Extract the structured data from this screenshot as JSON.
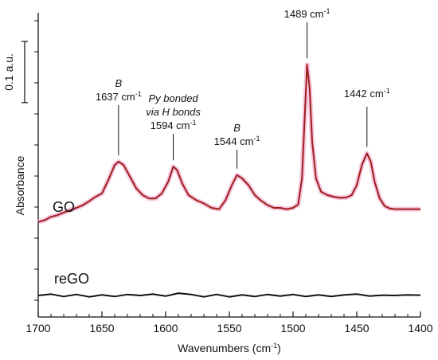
{
  "chart_data": {
    "type": "line",
    "xlabel": "Wavenumbers (cm",
    "xlabel_sup": "-1",
    "xlabel_end": ")",
    "ylabel": "Absorbance",
    "x_reversed": true,
    "xlim": [
      1700,
      1400
    ],
    "xticks": [
      1700,
      1650,
      1600,
      1550,
      1500,
      1450,
      1400
    ],
    "scale_bar": {
      "label": "0.1 a.u.",
      "value": 0.1
    },
    "series": [
      {
        "name": "GO",
        "color": "#a01e1e",
        "glow": "#f3b8d6",
        "points": [
          [
            1700,
            0.22
          ],
          [
            1695,
            0.225
          ],
          [
            1690,
            0.235
          ],
          [
            1685,
            0.24
          ],
          [
            1680,
            0.248
          ],
          [
            1675,
            0.255
          ],
          [
            1670,
            0.262
          ],
          [
            1665,
            0.27
          ],
          [
            1660,
            0.282
          ],
          [
            1655,
            0.295
          ],
          [
            1650,
            0.305
          ],
          [
            1645,
            0.345
          ],
          [
            1640,
            0.39
          ],
          [
            1637,
            0.4
          ],
          [
            1633,
            0.39
          ],
          [
            1628,
            0.355
          ],
          [
            1623,
            0.32
          ],
          [
            1618,
            0.3
          ],
          [
            1613,
            0.29
          ],
          [
            1608,
            0.29
          ],
          [
            1603,
            0.305
          ],
          [
            1598,
            0.34
          ],
          [
            1594,
            0.385
          ],
          [
            1591,
            0.375
          ],
          [
            1587,
            0.335
          ],
          [
            1582,
            0.3
          ],
          [
            1576,
            0.285
          ],
          [
            1570,
            0.275
          ],
          [
            1564,
            0.262
          ],
          [
            1558,
            0.258
          ],
          [
            1553,
            0.285
          ],
          [
            1548,
            0.33
          ],
          [
            1544,
            0.36
          ],
          [
            1540,
            0.35
          ],
          [
            1535,
            0.33
          ],
          [
            1530,
            0.3
          ],
          [
            1525,
            0.283
          ],
          [
            1520,
            0.27
          ],
          [
            1515,
            0.262
          ],
          [
            1510,
            0.262
          ],
          [
            1505,
            0.258
          ],
          [
            1500,
            0.262
          ],
          [
            1496,
            0.272
          ],
          [
            1493,
            0.35
          ],
          [
            1491,
            0.52
          ],
          [
            1489,
            0.69
          ],
          [
            1487,
            0.62
          ],
          [
            1485,
            0.46
          ],
          [
            1482,
            0.35
          ],
          [
            1478,
            0.31
          ],
          [
            1473,
            0.3
          ],
          [
            1468,
            0.295
          ],
          [
            1463,
            0.292
          ],
          [
            1458,
            0.293
          ],
          [
            1454,
            0.3
          ],
          [
            1450,
            0.33
          ],
          [
            1446,
            0.39
          ],
          [
            1442,
            0.425
          ],
          [
            1439,
            0.4
          ],
          [
            1436,
            0.34
          ],
          [
            1432,
            0.29
          ],
          [
            1428,
            0.267
          ],
          [
            1424,
            0.26
          ],
          [
            1420,
            0.258
          ],
          [
            1415,
            0.258
          ],
          [
            1410,
            0.258
          ],
          [
            1405,
            0.258
          ],
          [
            1400,
            0.258
          ]
        ]
      },
      {
        "name": "reGO",
        "color": "#111111",
        "points": [
          [
            1700,
            0.0
          ],
          [
            1690,
            0.004
          ],
          [
            1680,
            -0.003
          ],
          [
            1670,
            0.003
          ],
          [
            1660,
            -0.004
          ],
          [
            1650,
            0.002
          ],
          [
            1640,
            -0.003
          ],
          [
            1630,
            0.003
          ],
          [
            1620,
            0.0
          ],
          [
            1610,
            0.004
          ],
          [
            1600,
            -0.002
          ],
          [
            1590,
            0.007
          ],
          [
            1580,
            0.003
          ],
          [
            1570,
            -0.004
          ],
          [
            1560,
            0.003
          ],
          [
            1550,
            -0.004
          ],
          [
            1540,
            0.002
          ],
          [
            1530,
            -0.003
          ],
          [
            1520,
            0.003
          ],
          [
            1510,
            -0.002
          ],
          [
            1500,
            0.003
          ],
          [
            1490,
            -0.003
          ],
          [
            1480,
            0.002
          ],
          [
            1470,
            -0.003
          ],
          [
            1460,
            0.002
          ],
          [
            1450,
            0.004
          ],
          [
            1440,
            -0.002
          ],
          [
            1430,
            0.001
          ],
          [
            1420,
            0.0
          ],
          [
            1410,
            0.002
          ],
          [
            1400,
            0.001
          ]
        ]
      }
    ],
    "annotations": [
      {
        "x": 1637,
        "y": 0.4,
        "label_top": "B",
        "label": "1637 cm",
        "sup": "-1"
      },
      {
        "x": 1594,
        "y": 0.385,
        "label_lines": [
          "Py bonded",
          "via H bonds"
        ],
        "label": "1594 cm",
        "sup": "-1"
      },
      {
        "x": 1544,
        "y": 0.36,
        "label_top": "B",
        "label": "1544 cm",
        "sup": "-1"
      },
      {
        "x": 1489,
        "y": 0.69,
        "label": "1489 cm",
        "sup": "-1"
      },
      {
        "x": 1442,
        "y": 0.425,
        "label": "1442 cm",
        "sup": "-1"
      }
    ]
  }
}
